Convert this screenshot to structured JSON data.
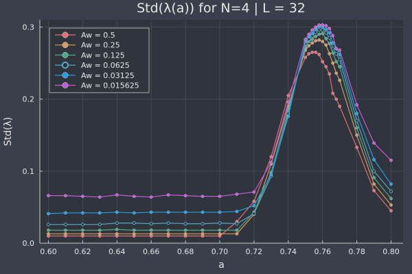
{
  "chart_data": {
    "type": "line",
    "title": "Std(λ(a)) for N=4 | L = 32",
    "xlabel": "a",
    "ylabel": "Std(λ)",
    "xlim": [
      0.595,
      0.807
    ],
    "ylim": [
      0.0,
      0.31
    ],
    "x_ticks": [
      0.6,
      0.62,
      0.64,
      0.66,
      0.68,
      0.7,
      0.72,
      0.74,
      0.76,
      0.78,
      0.8
    ],
    "x_tick_labels": [
      "0.60",
      "0.62",
      "0.64",
      "0.66",
      "0.68",
      "0.70",
      "0.72",
      "0.74",
      "0.76",
      "0.78",
      "0.80"
    ],
    "y_ticks": [
      0.0,
      0.1,
      0.2,
      0.3
    ],
    "y_tick_labels": [
      "0.0",
      "0.1",
      "0.2",
      "0.3"
    ],
    "grid": true,
    "legend_position": "top-left",
    "background_color": "#3a3f4b",
    "plot_background_color": "#30343d",
    "series": [
      {
        "name": "Aw = 0.5",
        "color": "#e26f72",
        "marker": "filled",
        "x": [
          0.6,
          0.61,
          0.62,
          0.63,
          0.64,
          0.65,
          0.66,
          0.67,
          0.68,
          0.69,
          0.7,
          0.71,
          0.72,
          0.73,
          0.74,
          0.75,
          0.752,
          0.754,
          0.756,
          0.758,
          0.76,
          0.762,
          0.764,
          0.766,
          0.768,
          0.77,
          0.78,
          0.79,
          0.8
        ],
        "y": [
          0.01,
          0.01,
          0.01,
          0.01,
          0.01,
          0.01,
          0.01,
          0.01,
          0.01,
          0.01,
          0.01,
          0.03,
          0.058,
          0.12,
          0.205,
          0.258,
          0.263,
          0.265,
          0.265,
          0.262,
          0.252,
          0.245,
          0.235,
          0.208,
          0.2,
          0.19,
          0.133,
          0.073,
          0.045
        ]
      },
      {
        "name": "Aw = 0.25",
        "color": "#d99a5e",
        "marker": "filled",
        "x": [
          0.6,
          0.61,
          0.62,
          0.63,
          0.64,
          0.65,
          0.66,
          0.67,
          0.68,
          0.69,
          0.7,
          0.71,
          0.72,
          0.73,
          0.74,
          0.75,
          0.752,
          0.754,
          0.756,
          0.758,
          0.76,
          0.762,
          0.764,
          0.766,
          0.768,
          0.77,
          0.78,
          0.79,
          0.8
        ],
        "y": [
          0.013,
          0.013,
          0.013,
          0.013,
          0.013,
          0.013,
          0.013,
          0.013,
          0.013,
          0.013,
          0.013,
          0.013,
          0.04,
          0.11,
          0.19,
          0.268,
          0.274,
          0.278,
          0.281,
          0.282,
          0.28,
          0.275,
          0.263,
          0.25,
          0.236,
          0.226,
          0.15,
          0.082,
          0.053
        ]
      },
      {
        "name": "Aw = 0.125",
        "color": "#4fa88a",
        "marker": "filled",
        "x": [
          0.6,
          0.61,
          0.62,
          0.63,
          0.64,
          0.65,
          0.66,
          0.67,
          0.68,
          0.69,
          0.7,
          0.71,
          0.72,
          0.73,
          0.74,
          0.75,
          0.752,
          0.754,
          0.756,
          0.758,
          0.76,
          0.762,
          0.764,
          0.766,
          0.768,
          0.77,
          0.78,
          0.79,
          0.8
        ],
        "y": [
          0.018,
          0.018,
          0.018,
          0.018,
          0.019,
          0.018,
          0.018,
          0.018,
          0.018,
          0.018,
          0.018,
          0.018,
          0.043,
          0.098,
          0.185,
          0.272,
          0.28,
          0.283,
          0.287,
          0.29,
          0.291,
          0.284,
          0.277,
          0.264,
          0.252,
          0.245,
          0.16,
          0.091,
          0.062
        ]
      },
      {
        "name": "Aw = 0.0625",
        "color": "#56a7c2",
        "marker": "hollow",
        "x": [
          0.6,
          0.61,
          0.62,
          0.63,
          0.64,
          0.65,
          0.66,
          0.67,
          0.68,
          0.69,
          0.7,
          0.71,
          0.72,
          0.73,
          0.74,
          0.75,
          0.752,
          0.754,
          0.756,
          0.758,
          0.76,
          0.762,
          0.764,
          0.766,
          0.768,
          0.77,
          0.78,
          0.79,
          0.8
        ],
        "y": [
          0.026,
          0.026,
          0.026,
          0.026,
          0.028,
          0.028,
          0.027,
          0.028,
          0.027,
          0.027,
          0.028,
          0.027,
          0.041,
          0.093,
          0.18,
          0.277,
          0.283,
          0.288,
          0.293,
          0.296,
          0.296,
          0.292,
          0.285,
          0.27,
          0.263,
          0.255,
          0.17,
          0.1,
          0.072
        ]
      },
      {
        "name": "Aw = 0.03125",
        "color": "#1fa1e6",
        "marker": "filled",
        "x": [
          0.6,
          0.61,
          0.62,
          0.63,
          0.64,
          0.65,
          0.66,
          0.67,
          0.68,
          0.69,
          0.7,
          0.71,
          0.72,
          0.73,
          0.74,
          0.75,
          0.752,
          0.754,
          0.756,
          0.758,
          0.76,
          0.762,
          0.764,
          0.766,
          0.768,
          0.77,
          0.78,
          0.79,
          0.8
        ],
        "y": [
          0.041,
          0.042,
          0.042,
          0.042,
          0.043,
          0.042,
          0.043,
          0.043,
          0.043,
          0.043,
          0.043,
          0.044,
          0.052,
          0.095,
          0.176,
          0.28,
          0.287,
          0.291,
          0.297,
          0.301,
          0.3,
          0.297,
          0.292,
          0.278,
          0.27,
          0.262,
          0.18,
          0.116,
          0.082
        ]
      },
      {
        "name": "Aw = 0.015625",
        "color": "#c55ad9",
        "marker": "filled",
        "x": [
          0.6,
          0.61,
          0.62,
          0.63,
          0.64,
          0.65,
          0.66,
          0.67,
          0.68,
          0.69,
          0.7,
          0.71,
          0.72,
          0.73,
          0.74,
          0.75,
          0.752,
          0.754,
          0.756,
          0.758,
          0.76,
          0.762,
          0.764,
          0.766,
          0.768,
          0.77,
          0.78,
          0.79,
          0.8
        ],
        "y": [
          0.066,
          0.066,
          0.065,
          0.064,
          0.067,
          0.065,
          0.064,
          0.067,
          0.066,
          0.065,
          0.065,
          0.068,
          0.071,
          0.112,
          0.196,
          0.283,
          0.29,
          0.296,
          0.3,
          0.303,
          0.303,
          0.302,
          0.298,
          0.288,
          0.27,
          0.268,
          0.192,
          0.139,
          0.115
        ]
      }
    ]
  }
}
